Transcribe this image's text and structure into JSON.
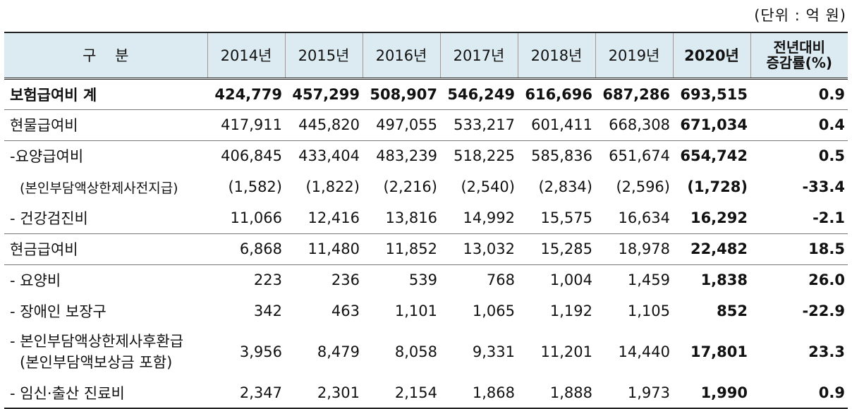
{
  "unit_note": "(단위 : 억 원)",
  "header": {
    "category": "구    분",
    "years": [
      "2014년",
      "2015년",
      "2016년",
      "2017년",
      "2018년",
      "2019년"
    ],
    "current_year": "2020년",
    "yoy_line1": "전년대비",
    "yoy_line2": "증감률(%)"
  },
  "rows": [
    {
      "label": "보험급여비 계",
      "values": [
        "424,779",
        "457,299",
        "508,907",
        "546,249",
        "616,696",
        "687,286"
      ],
      "current": "693,515",
      "yoy": "0.9"
    },
    {
      "label": "현물급여비",
      "values": [
        "417,911",
        "445,820",
        "497,055",
        "533,217",
        "601,411",
        "668,308"
      ],
      "current": "671,034",
      "yoy": "0.4"
    },
    {
      "label": "-요양급여비",
      "values": [
        "406,845",
        "433,404",
        "483,239",
        "518,225",
        "585,836",
        "651,674"
      ],
      "current": "654,742",
      "yoy": "0.5"
    },
    {
      "label": "(본인부담액상한제사전지급)",
      "values": [
        "(1,582)",
        "(1,822)",
        "(2,216)",
        "(2,540)",
        "(2,834)",
        "(2,596)"
      ],
      "current": "(1,728)",
      "yoy": "-33.4"
    },
    {
      "label": "- 건강검진비",
      "values": [
        "11,066",
        "12,416",
        "13,816",
        "14,992",
        "15,575",
        "16,634"
      ],
      "current": "16,292",
      "yoy": "-2.1"
    },
    {
      "label": "현금급여비",
      "values": [
        "6,868",
        "11,480",
        "11,852",
        "13,032",
        "15,285",
        "18,978"
      ],
      "current": "22,482",
      "yoy": "18.5"
    },
    {
      "label": "- 요양비",
      "values": [
        "223",
        "236",
        "539",
        "768",
        "1,004",
        "1,459"
      ],
      "current": "1,838",
      "yoy": "26.0"
    },
    {
      "label": "- 장애인 보장구",
      "values": [
        "342",
        "463",
        "1,101",
        "1,065",
        "1,192",
        "1,105"
      ],
      "current": "852",
      "yoy": "-22.9"
    },
    {
      "label": "- 본인부담액상한제사후환급",
      "label2": "(본인부담액보상금 포함)",
      "values": [
        "3,956",
        "8,479",
        "8,058",
        "9,331",
        "11,201",
        "14,440"
      ],
      "current": "17,801",
      "yoy": "23.3"
    },
    {
      "label": "- 임신·출산 진료비",
      "values": [
        "2,347",
        "2,301",
        "2,154",
        "1,868",
        "1,888",
        "1,973"
      ],
      "current": "1,990",
      "yoy": "0.9"
    }
  ]
}
